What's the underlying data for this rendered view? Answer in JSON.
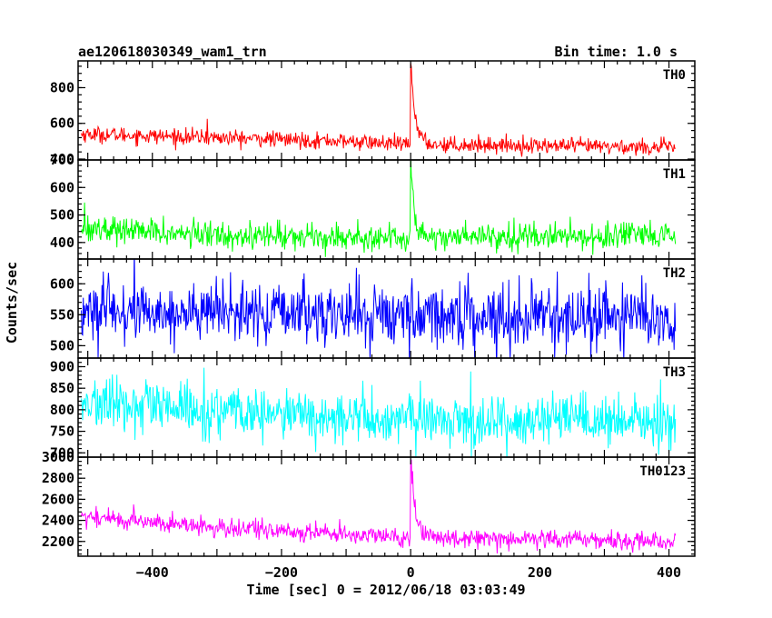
{
  "header": {
    "title": "ae120618030349_wam1_trn",
    "bin_time": "Bin time: 1.0 s"
  },
  "chart_data": {
    "type": "line",
    "title": "ae120618030349_wam1_trn",
    "xlabel": "Time [sec] 0 = 2012/06/18 03:03:49",
    "ylabel": "Counts/sec",
    "xlim": [
      -515,
      440
    ],
    "x_range": [
      -510,
      410
    ],
    "bin_size": 1.0,
    "x_ticks": [
      -400,
      -200,
      0,
      200,
      400
    ],
    "x_tick_labels": [
      "−400",
      "−200",
      "0",
      "200",
      "400"
    ],
    "panels": [
      {
        "name": "TH0",
        "color": "#ff0000",
        "ylim": [
          395,
          950
        ],
        "y_ticks": [
          400,
          600,
          800
        ],
        "y_tick_labels": [
          "400",
          "600",
          "800"
        ],
        "baseline_points": [
          [
            -510,
            540
          ],
          [
            -300,
            520
          ],
          [
            -100,
            500
          ],
          [
            -5,
            480
          ],
          [
            100,
            480
          ],
          [
            410,
            465
          ]
        ],
        "noise_sd": 22,
        "burst": {
          "t0": 0,
          "peak": 950,
          "decay_sec": 7
        },
        "spikes": [
          [
            -315,
            625
          ]
        ]
      },
      {
        "name": "TH1",
        "color": "#00ff00",
        "ylim": [
          340,
          700
        ],
        "y_ticks": [
          400,
          500,
          600,
          700
        ],
        "y_tick_labels": [
          "400",
          "500",
          "600",
          "700"
        ],
        "baseline_points": [
          [
            -510,
            455
          ],
          [
            -350,
            430
          ],
          [
            -100,
            420
          ],
          [
            -5,
            415
          ],
          [
            100,
            425
          ],
          [
            410,
            420
          ]
        ],
        "noise_sd": 24,
        "burst": {
          "t0": 0,
          "peak": 700,
          "decay_sec": 6
        },
        "spikes": [
          [
            -505,
            545
          ]
        ]
      },
      {
        "name": "TH2",
        "color": "#0000ff",
        "ylim": [
          480,
          640
        ],
        "y_ticks": [
          500,
          550,
          600
        ],
        "y_tick_labels": [
          "500",
          "550",
          "600"
        ],
        "baseline_points": [
          [
            -510,
            555
          ],
          [
            0,
            550
          ],
          [
            410,
            545
          ]
        ],
        "noise_sd": 25,
        "burst": null,
        "spikes": []
      },
      {
        "name": "TH3",
        "color": "#00ffff",
        "ylim": [
          690,
          920
        ],
        "y_ticks": [
          700,
          750,
          800,
          850,
          900
        ],
        "y_tick_labels": [
          "700",
          "750",
          "800",
          "850",
          "900"
        ],
        "baseline_points": [
          [
            -510,
            815
          ],
          [
            -300,
            795
          ],
          [
            -100,
            780
          ],
          [
            100,
            775
          ],
          [
            410,
            770
          ]
        ],
        "noise_sd": 30,
        "burst": null,
        "spikes": []
      },
      {
        "name": "TH0123",
        "color": "#ff00ff",
        "ylim": [
          2060,
          3000
        ],
        "y_ticks": [
          2200,
          2400,
          2600,
          2800,
          3000
        ],
        "y_tick_labels": [
          "2200",
          "2400",
          "2600",
          "2800",
          "3000"
        ],
        "baseline_points": [
          [
            -510,
            2440
          ],
          [
            -300,
            2330
          ],
          [
            -100,
            2270
          ],
          [
            -5,
            2230
          ],
          [
            100,
            2240
          ],
          [
            410,
            2200
          ]
        ],
        "noise_sd": 45,
        "burst": {
          "t0": 0,
          "peak": 3000,
          "decay_sec": 7
        },
        "spikes": []
      }
    ]
  }
}
